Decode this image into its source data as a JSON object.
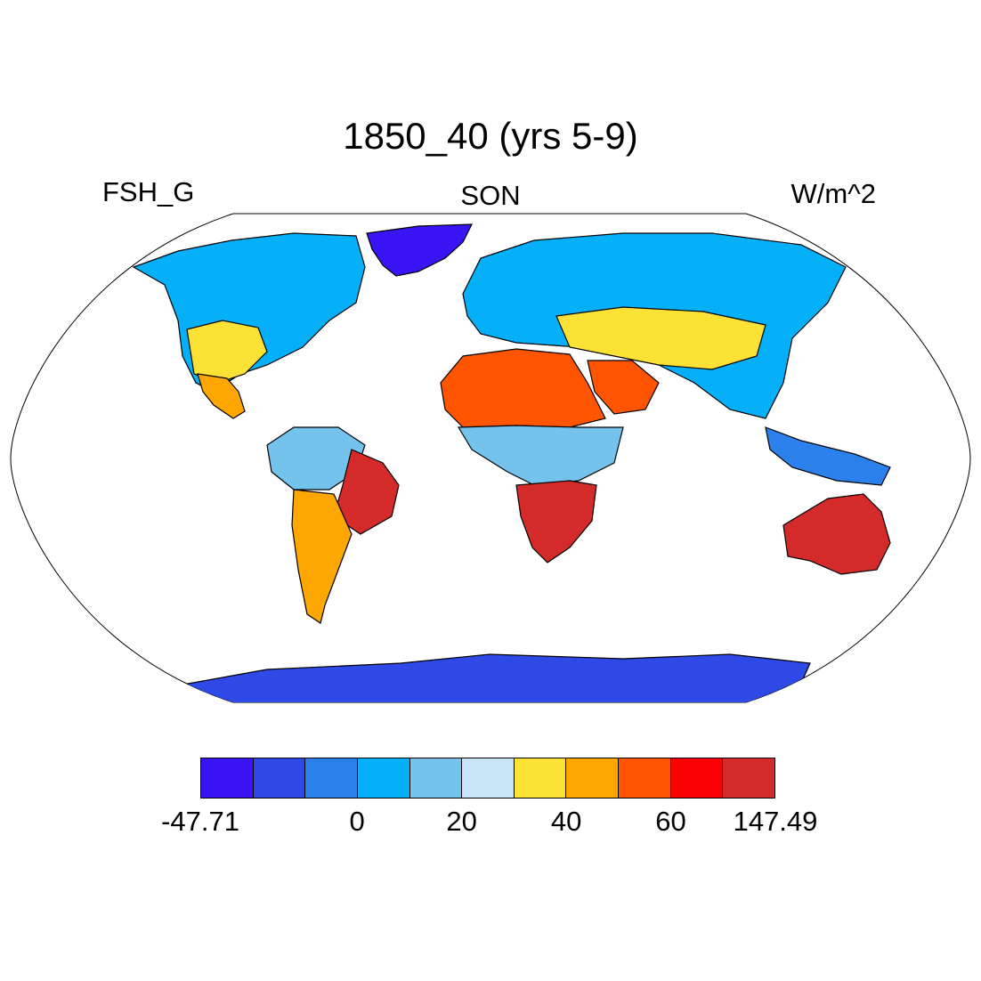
{
  "title": "1850_40 (yrs 5-9)",
  "variable": "FSH_G",
  "season": "SON",
  "units": "W/m^2",
  "colorbar": {
    "colors": [
      "#3a14f5",
      "#2e49e6",
      "#2b80ec",
      "#06b0f9",
      "#74c3ec",
      "#c8e6f7",
      "#fde236",
      "#fea601",
      "#ff5500",
      "#f90003",
      "#d42a2a"
    ],
    "labels": [
      {
        "text": "-47.71",
        "boundary": 0
      },
      {
        "text": "0",
        "boundary": 3
      },
      {
        "text": "20",
        "boundary": 5
      },
      {
        "text": "40",
        "boundary": 7
      },
      {
        "text": "60",
        "boundary": 9
      },
      {
        "text": "147.49",
        "boundary": 11
      }
    ]
  },
  "map": {
    "projection": "Robinson",
    "regions": [
      {
        "name": "greenland",
        "color": "#3a14f5"
      },
      {
        "name": "antarctica",
        "color": "#2e49e6"
      },
      {
        "name": "north-america",
        "color": "#06b0f9"
      },
      {
        "name": "us-southwest",
        "color": "#fde236"
      },
      {
        "name": "mexico",
        "color": "#fea601"
      },
      {
        "name": "eurasia",
        "color": "#06b0f9"
      },
      {
        "name": "central-asia",
        "color": "#fde236"
      },
      {
        "name": "sahara",
        "color": "#ff5500"
      },
      {
        "name": "arabia",
        "color": "#ff5500"
      },
      {
        "name": "central-africa",
        "color": "#74c3ec"
      },
      {
        "name": "southern-africa",
        "color": "#d42a2a"
      },
      {
        "name": "amazon",
        "color": "#74c3ec"
      },
      {
        "name": "brazil-east",
        "color": "#d42a2a"
      },
      {
        "name": "argentina",
        "color": "#fea601"
      },
      {
        "name": "southeast-asia",
        "color": "#2b80ec"
      },
      {
        "name": "australia",
        "color": "#d42a2a"
      }
    ]
  }
}
